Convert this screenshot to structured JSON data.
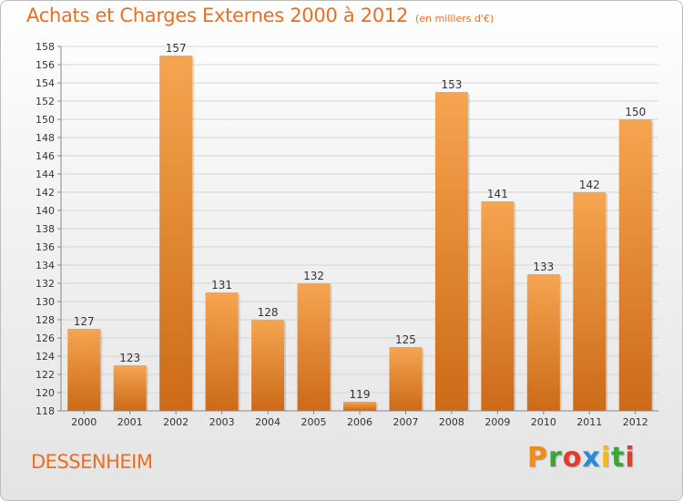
{
  "header": {
    "title": "Achats et Charges Externes 2000 à 2012",
    "subtitle": "(en milliers d'€)"
  },
  "footer": {
    "commune": "DESSENHEIM",
    "brand": "Proxiti",
    "brand_letters": [
      {
        "char": "P",
        "color": "#f08c1a"
      },
      {
        "char": "r",
        "color": "#3aa53a"
      },
      {
        "char": "o",
        "color": "#e83a2c"
      },
      {
        "char": "x",
        "color": "#2b8ad6"
      },
      {
        "char": "i",
        "color": "#f0b81a"
      },
      {
        "char": "t",
        "color": "#3aa53a"
      },
      {
        "char": "i",
        "color": "#e83a2c"
      }
    ]
  },
  "colors": {
    "title": "#ee6d1f",
    "bar_light": "#f6a550",
    "bar_dark": "#cc6a18",
    "grid": "#d5d5d5",
    "axis_text": "#333333"
  },
  "chart_data": {
    "type": "bar",
    "categories": [
      "2000",
      "2001",
      "2002",
      "2003",
      "2004",
      "2005",
      "2006",
      "2007",
      "2008",
      "2009",
      "2010",
      "2011",
      "2012"
    ],
    "values": [
      127,
      123,
      157,
      131,
      128,
      132,
      119,
      125,
      153,
      141,
      133,
      142,
      150
    ],
    "ylim": [
      118,
      158
    ],
    "yticks": [
      118,
      120,
      122,
      124,
      126,
      128,
      130,
      132,
      134,
      136,
      138,
      140,
      142,
      144,
      146,
      148,
      150,
      152,
      154,
      156,
      158
    ],
    "grid": true,
    "data_labels": true,
    "xlabel": "",
    "ylabel": ""
  }
}
